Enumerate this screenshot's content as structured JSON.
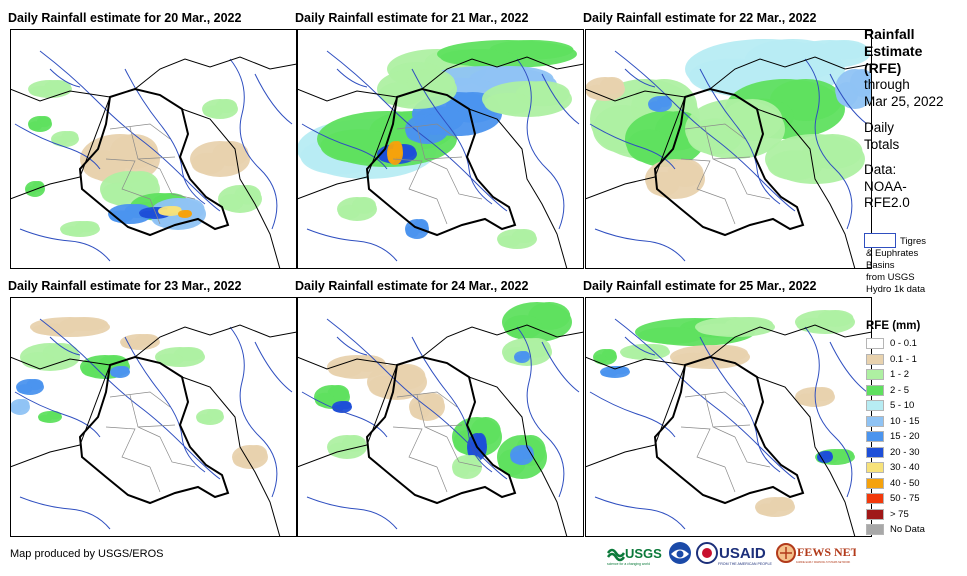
{
  "panels": [
    {
      "title": "Daily Rainfall estimate for 20 Mar., 2022"
    },
    {
      "title": "Daily Rainfall estimate for 21 Mar., 2022"
    },
    {
      "title": "Daily Rainfall estimate for 22 Mar., 2022"
    },
    {
      "title": "Daily Rainfall estimate for 23 Mar., 2022"
    },
    {
      "title": "Daily Rainfall estimate for 24 Mar., 2022"
    },
    {
      "title": "Daily Rainfall estimate for 25 Mar., 2022"
    }
  ],
  "side": {
    "title_lines": [
      "Rainfall",
      "Estimate",
      "(RFE)"
    ],
    "through_label": "through",
    "through_date": "Mar 25, 2022",
    "daily": "Daily",
    "totals": "Totals",
    "data_label": "Data:",
    "data_source_1": "NOAA-",
    "data_source_2": "RFE2.0",
    "basin_lines": [
      "Tigres",
      "& Euphrates",
      "Basins",
      "from USGS",
      "Hydro 1k data"
    ]
  },
  "legend": {
    "title": "RFE (mm)",
    "items": [
      {
        "label": "0 - 0.1",
        "color": "#ffffff"
      },
      {
        "label": "0.1 - 1",
        "color": "#e8d2ae"
      },
      {
        "label": "1 - 2",
        "color": "#aef0a2"
      },
      {
        "label": "2 - 5",
        "color": "#5fe05f"
      },
      {
        "label": "5 - 10",
        "color": "#b7ecf3"
      },
      {
        "label": "10 - 15",
        "color": "#8fc3f4"
      },
      {
        "label": "15 - 20",
        "color": "#4b94ee"
      },
      {
        "label": "20 - 30",
        "color": "#1e4fd8"
      },
      {
        "label": "30 - 40",
        "color": "#f7e27a"
      },
      {
        "label": "40 - 50",
        "color": "#f5a20c"
      },
      {
        "label": "50 - 75",
        "color": "#f23a0c"
      },
      {
        "label": "> 75",
        "color": "#a01818"
      },
      {
        "label": "No Data",
        "color": "#a8a8a8"
      }
    ]
  },
  "credit": "Map produced by USGS/EROS",
  "logos": {
    "usgs": "USGS",
    "usgs_tagline": "science for a changing world",
    "usaid": "USAID",
    "usaid_tagline": "FROM THE AMERICAN PEOPLE",
    "fewsnet": "FEWS NET",
    "fewsnet_tagline": "FAMINE EARLY WARNING SYSTEMS NETWORK"
  }
}
